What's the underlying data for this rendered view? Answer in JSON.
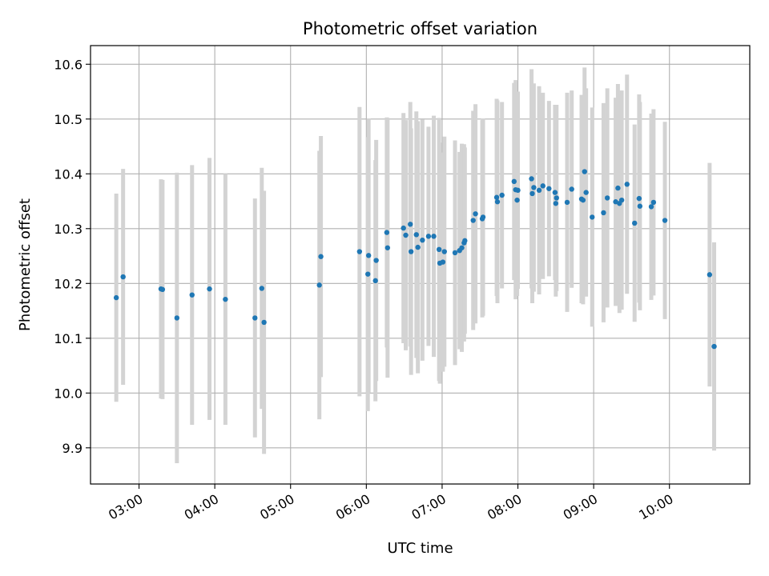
{
  "chart_data": {
    "type": "scatter",
    "title": "Photometric offset variation",
    "xlabel": "UTC time",
    "ylabel": "Photometric offset",
    "x_unit": "UTC hour",
    "xlim": [
      2.36,
      11.06
    ],
    "ylim": [
      9.834,
      10.634
    ],
    "xticks": [
      {
        "value": 3,
        "label": "03:00"
      },
      {
        "value": 4,
        "label": "04:00"
      },
      {
        "value": 5,
        "label": "05:00"
      },
      {
        "value": 6,
        "label": "06:00"
      },
      {
        "value": 7,
        "label": "07:00"
      },
      {
        "value": 8,
        "label": "08:00"
      },
      {
        "value": 9,
        "label": "09:00"
      },
      {
        "value": 10,
        "label": "10:00"
      }
    ],
    "yticks": [
      {
        "value": 9.9,
        "label": "9.9"
      },
      {
        "value": 10.0,
        "label": "10.0"
      },
      {
        "value": 10.1,
        "label": "10.1"
      },
      {
        "value": 10.2,
        "label": "10.2"
      },
      {
        "value": 10.3,
        "label": "10.3"
      },
      {
        "value": 10.4,
        "label": "10.4"
      },
      {
        "value": 10.5,
        "label": "10.5"
      },
      {
        "value": 10.6,
        "label": "10.6"
      }
    ],
    "grid": true,
    "colors": {
      "point": "#1f77b4",
      "errorbar": "#d3d3d3",
      "grid": "#b0b0b0"
    },
    "series": [
      {
        "points": [
          [
            2.7,
            10.174,
            0.19
          ],
          [
            2.79,
            10.212,
            0.197
          ],
          [
            3.29,
            10.19,
            0.2
          ],
          [
            3.31,
            10.189,
            0.2
          ],
          [
            3.5,
            10.137,
            0.265
          ],
          [
            3.7,
            10.179,
            0.237
          ],
          [
            3.93,
            10.19,
            0.239
          ],
          [
            4.14,
            10.171,
            0.229
          ],
          [
            4.53,
            10.137,
            0.218
          ],
          [
            4.62,
            10.191,
            0.22
          ],
          [
            4.65,
            10.129,
            0.24
          ],
          [
            5.38,
            10.197,
            0.245
          ],
          [
            5.4,
            10.249,
            0.22
          ],
          [
            5.91,
            10.258,
            0.264
          ],
          [
            6.02,
            10.217,
            0.25
          ],
          [
            6.03,
            10.251,
            0.25
          ],
          [
            6.12,
            10.205,
            0.22
          ],
          [
            6.13,
            10.242,
            0.22
          ],
          [
            6.27,
            10.293,
            0.21
          ],
          [
            6.28,
            10.265,
            0.237
          ],
          [
            6.49,
            10.301,
            0.21
          ],
          [
            6.52,
            10.288,
            0.21
          ],
          [
            6.58,
            10.308,
            0.223
          ],
          [
            6.59,
            10.258,
            0.225
          ],
          [
            6.66,
            10.289,
            0.225
          ],
          [
            6.68,
            10.266,
            0.23
          ],
          [
            6.74,
            10.279,
            0.22
          ],
          [
            6.82,
            10.286,
            0.2
          ],
          [
            6.89,
            10.286,
            0.22
          ],
          [
            6.96,
            10.262,
            0.24
          ],
          [
            6.97,
            10.237,
            0.22
          ],
          [
            7.01,
            10.239,
            0.2
          ],
          [
            7.03,
            10.258,
            0.21
          ],
          [
            7.17,
            10.256,
            0.205
          ],
          [
            7.23,
            10.26,
            0.18
          ],
          [
            7.26,
            10.265,
            0.19
          ],
          [
            7.29,
            10.274,
            0.18
          ],
          [
            7.3,
            10.278,
            0.17
          ],
          [
            7.41,
            10.315,
            0.2
          ],
          [
            7.44,
            10.327,
            0.2
          ],
          [
            7.53,
            10.318,
            0.18
          ],
          [
            7.54,
            10.321,
            0.18
          ],
          [
            7.72,
            10.357,
            0.18
          ],
          [
            7.73,
            10.349,
            0.185
          ],
          [
            7.79,
            10.361,
            0.17
          ],
          [
            7.95,
            10.386,
            0.18
          ],
          [
            7.97,
            10.371,
            0.2
          ],
          [
            7.99,
            10.352,
            0.175
          ],
          [
            8.0,
            10.37,
            0.18
          ],
          [
            8.18,
            10.391,
            0.2
          ],
          [
            8.19,
            10.364,
            0.2
          ],
          [
            8.21,
            10.375,
            0.19
          ],
          [
            8.28,
            10.37,
            0.19
          ],
          [
            8.33,
            10.378,
            0.17
          ],
          [
            8.41,
            10.373,
            0.16
          ],
          [
            8.49,
            10.366,
            0.16
          ],
          [
            8.5,
            10.346,
            0.17
          ],
          [
            8.51,
            10.356,
            0.17
          ],
          [
            8.65,
            10.348,
            0.2
          ],
          [
            8.71,
            10.372,
            0.18
          ],
          [
            8.84,
            10.354,
            0.19
          ],
          [
            8.86,
            10.352,
            0.19
          ],
          [
            8.88,
            10.404,
            0.19
          ],
          [
            8.9,
            10.366,
            0.19
          ],
          [
            8.98,
            10.321,
            0.2
          ],
          [
            9.13,
            10.329,
            0.2
          ],
          [
            9.18,
            10.356,
            0.2
          ],
          [
            9.29,
            10.349,
            0.19
          ],
          [
            9.32,
            10.374,
            0.19
          ],
          [
            9.34,
            10.346,
            0.2
          ],
          [
            9.37,
            10.352,
            0.2
          ],
          [
            9.44,
            10.381,
            0.2
          ],
          [
            9.54,
            10.31,
            0.18
          ],
          [
            9.6,
            10.355,
            0.19
          ],
          [
            9.61,
            10.341,
            0.19
          ],
          [
            9.76,
            10.34,
            0.17
          ],
          [
            9.79,
            10.348,
            0.17
          ],
          [
            9.94,
            10.315,
            0.18
          ],
          [
            10.53,
            10.216,
            0.204
          ],
          [
            10.59,
            10.085,
            0.19
          ]
        ]
      }
    ]
  }
}
